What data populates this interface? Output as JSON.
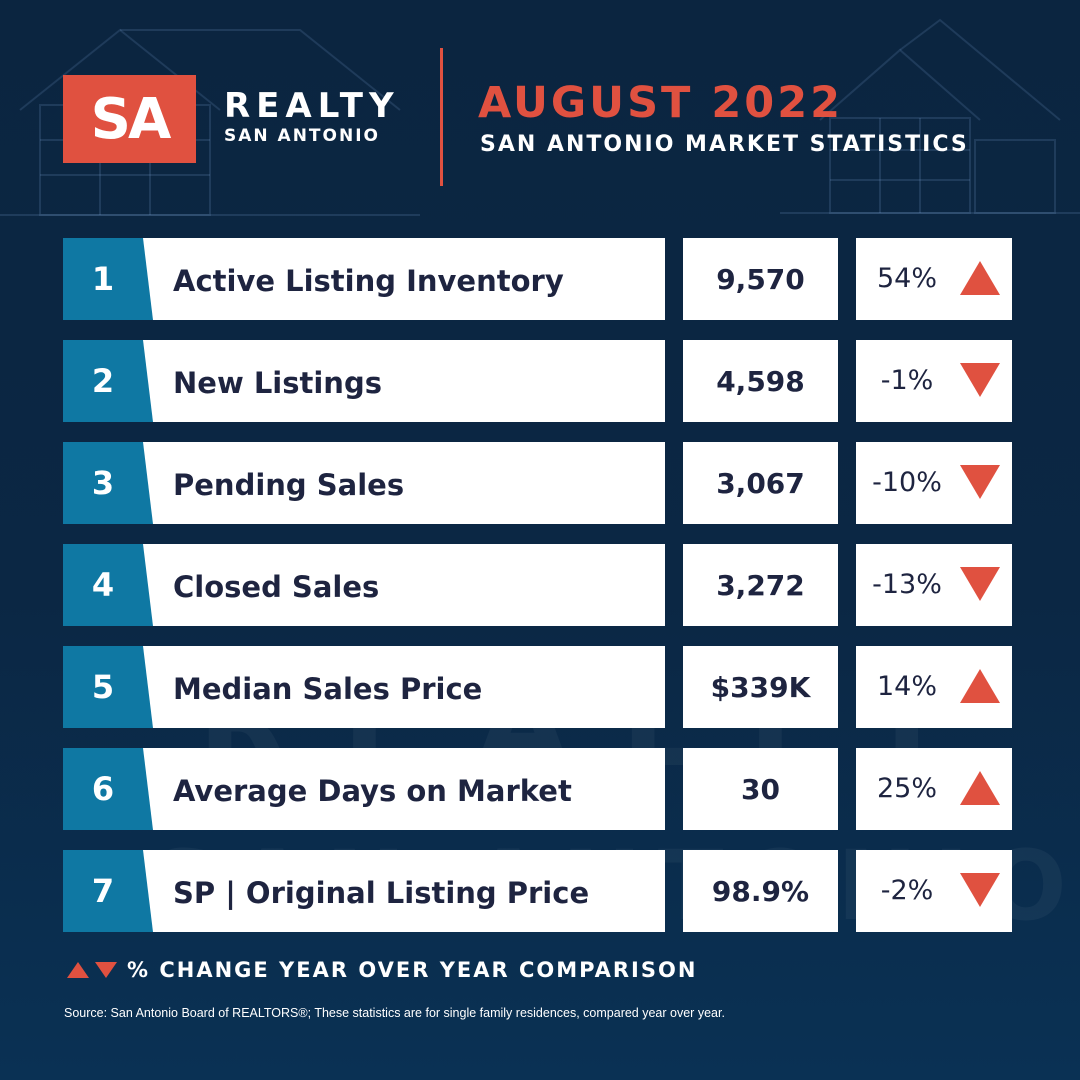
{
  "brand": {
    "logo_mark": "SA",
    "name": "REALTY",
    "city": "SAN ANTONIO",
    "accent_color": "#e05140",
    "number_color": "#0f78a3"
  },
  "header": {
    "title": "AUGUST 2022",
    "subtitle": "SAN ANTONIO MARKET STATISTICS"
  },
  "stats": [
    {
      "num": "1",
      "label": "Active Listing Inventory",
      "value": "9,570",
      "change": "54%",
      "direction": "up"
    },
    {
      "num": "2",
      "label": "New Listings",
      "value": "4,598",
      "change": "-1%",
      "direction": "down"
    },
    {
      "num": "3",
      "label": "Pending Sales",
      "value": "3,067",
      "change": "-10%",
      "direction": "down"
    },
    {
      "num": "4",
      "label": "Closed Sales",
      "value": "3,272",
      "change": "-13%",
      "direction": "down"
    },
    {
      "num": "5",
      "label": "Median Sales Price",
      "value": "$339K",
      "change": "14%",
      "direction": "up"
    },
    {
      "num": "6",
      "label": "Average Days on Market",
      "value": "30",
      "change": "25%",
      "direction": "up"
    },
    {
      "num": "7",
      "label": "SP | Original Listing Price",
      "value": "98.9%",
      "change": "-2%",
      "direction": "down"
    }
  ],
  "legend": {
    "text": "% CHANGE YEAR OVER YEAR COMPARISON",
    "icons": [
      "triangle-up-icon",
      "triangle-down-icon"
    ]
  },
  "source": "Source: San Antonio Board of REALTORS®; These statistics are for single family residences, compared year over year.",
  "watermark": {
    "line1": "REALTY",
    "line2": "SAN ANTONIO"
  }
}
